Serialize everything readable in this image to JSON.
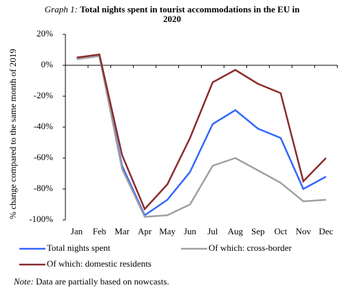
{
  "chart_data": {
    "type": "line",
    "title_prefix": "Graph 1:",
    "title": "Total nights spent in tourist accommodations in the EU in 2020",
    "y_label": "% change compared to the same month of 2019",
    "categories": [
      "Jan",
      "Feb",
      "Mar",
      "Apr",
      "May",
      "Jun",
      "Jul",
      "Aug",
      "Sep",
      "Oct",
      "Nov",
      "Dec"
    ],
    "series": [
      {
        "name": "Total nights spent",
        "color": "#3366ff",
        "values": [
          4,
          6,
          -65,
          -97,
          -87,
          -69,
          -38,
          -29,
          -41,
          -47,
          -80,
          -72
        ]
      },
      {
        "name": "Of which: cross-border",
        "color": "#a0a0a0",
        "values": [
          4,
          6,
          -67,
          -98,
          -97,
          -90,
          -65,
          -60,
          -68,
          -76,
          -88,
          -87
        ]
      },
      {
        "name": "Of which: domestic residents",
        "color": "#8b2b2b",
        "values": [
          5,
          7,
          -58,
          -93,
          -77,
          -47,
          -11,
          -3,
          -12,
          -18,
          -75,
          -60
        ]
      }
    ],
    "ylim": [
      -100,
      20
    ],
    "yticks": [
      {
        "value": -100,
        "label": "-100%"
      },
      {
        "value": -80,
        "label": "-80%"
      },
      {
        "value": -60,
        "label": "-60%"
      },
      {
        "value": -40,
        "label": "-40%"
      },
      {
        "value": -20,
        "label": "-20%"
      },
      {
        "value": 0,
        "label": "0%"
      },
      {
        "value": 20,
        "label": "20%"
      }
    ],
    "grid": false,
    "note_prefix": "Note:",
    "note": "Data are partially based on nowcasts."
  }
}
